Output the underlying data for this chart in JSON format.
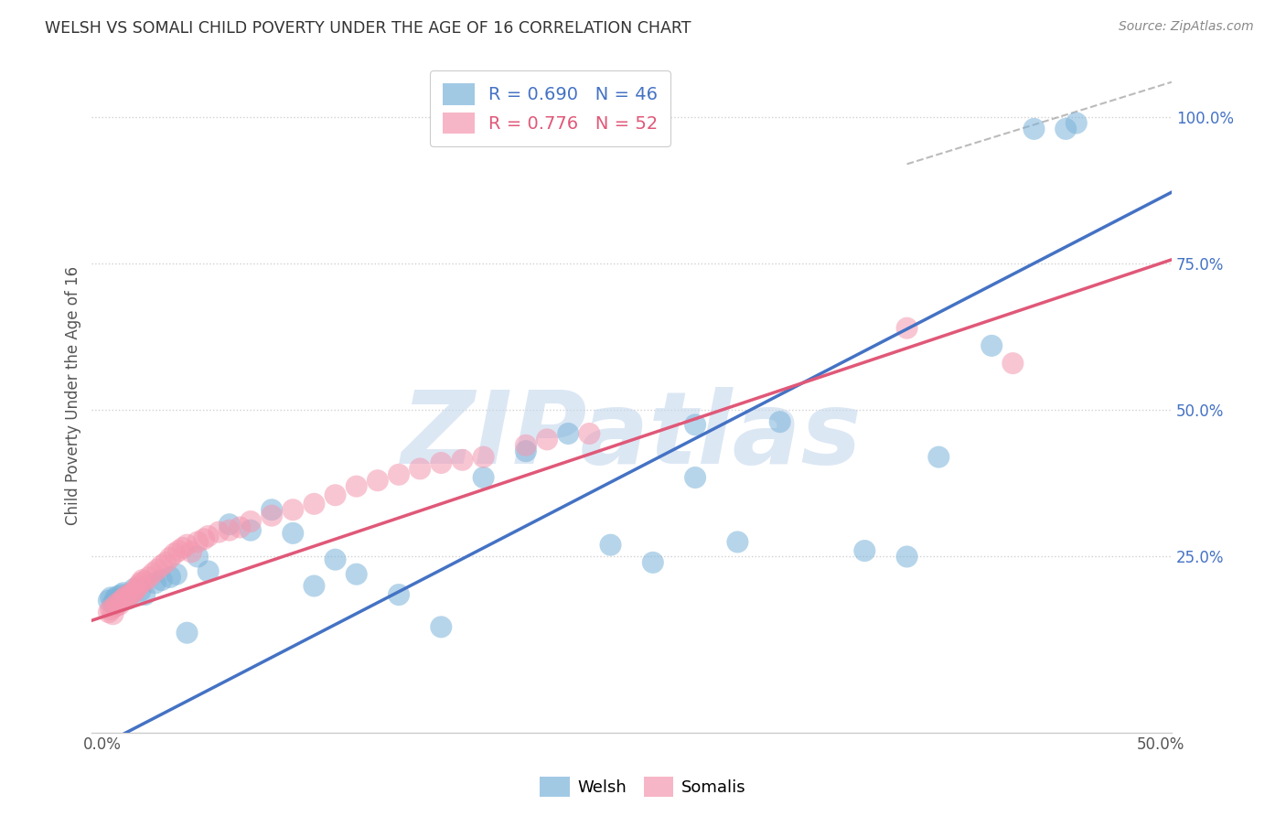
{
  "title": "WELSH VS SOMALI CHILD POVERTY UNDER THE AGE OF 16 CORRELATION CHART",
  "source": "Source: ZipAtlas.com",
  "ylabel": "Child Poverty Under the Age of 16",
  "xlim": [
    -0.005,
    0.505
  ],
  "ylim": [
    -0.05,
    1.1
  ],
  "xtick_positions": [
    0.0,
    0.1,
    0.2,
    0.3,
    0.4,
    0.5
  ],
  "xticklabels": [
    "0.0%",
    "",
    "",
    "",
    "",
    "50.0%"
  ],
  "ytick_positions": [
    0.25,
    0.5,
    0.75,
    1.0
  ],
  "ytick_labels": [
    "25.0%",
    "50.0%",
    "75.0%",
    "100.0%"
  ],
  "welsh_color": "#7ab3d9",
  "somali_color": "#f498b0",
  "welsh_line_color": "#4472c4",
  "somali_line_color": "#e05878",
  "legend_welsh_label": "R = 0.690   N = 46",
  "legend_somali_label": "R = 0.776   N = 52",
  "watermark": "ZIPatlas",
  "watermark_color": "#c5d8ed",
  "background_color": "#ffffff",
  "welsh_x": [
    0.003,
    0.004,
    0.005,
    0.006,
    0.007,
    0.008,
    0.009,
    0.01,
    0.011,
    0.012,
    0.013,
    0.015,
    0.018,
    0.02,
    0.025,
    0.028,
    0.032,
    0.035,
    0.04,
    0.045,
    0.05,
    0.06,
    0.07,
    0.08,
    0.09,
    0.1,
    0.11,
    0.12,
    0.14,
    0.16,
    0.18,
    0.2,
    0.22,
    0.24,
    0.26,
    0.28,
    0.3,
    0.32,
    0.36,
    0.38,
    0.42,
    0.44,
    0.455,
    0.46,
    0.395,
    0.28
  ],
  "welsh_y": [
    0.175,
    0.18,
    0.17,
    0.178,
    0.182,
    0.172,
    0.185,
    0.188,
    0.183,
    0.178,
    0.185,
    0.195,
    0.192,
    0.185,
    0.205,
    0.21,
    0.215,
    0.22,
    0.12,
    0.25,
    0.225,
    0.305,
    0.295,
    0.33,
    0.29,
    0.2,
    0.245,
    0.22,
    0.185,
    0.13,
    0.385,
    0.43,
    0.46,
    0.27,
    0.24,
    0.385,
    0.275,
    0.48,
    0.26,
    0.25,
    0.61,
    0.98,
    0.98,
    0.99,
    0.42,
    0.475
  ],
  "somali_x": [
    0.003,
    0.004,
    0.005,
    0.006,
    0.007,
    0.008,
    0.009,
    0.01,
    0.011,
    0.012,
    0.013,
    0.014,
    0.015,
    0.016,
    0.017,
    0.018,
    0.019,
    0.02,
    0.022,
    0.024,
    0.026,
    0.028,
    0.03,
    0.032,
    0.034,
    0.036,
    0.038,
    0.04,
    0.042,
    0.045,
    0.048,
    0.05,
    0.055,
    0.06,
    0.065,
    0.07,
    0.08,
    0.09,
    0.1,
    0.11,
    0.12,
    0.13,
    0.14,
    0.15,
    0.16,
    0.17,
    0.18,
    0.2,
    0.21,
    0.23,
    0.38,
    0.43
  ],
  "somali_y": [
    0.155,
    0.16,
    0.152,
    0.165,
    0.17,
    0.168,
    0.175,
    0.178,
    0.182,
    0.18,
    0.185,
    0.188,
    0.19,
    0.195,
    0.2,
    0.205,
    0.21,
    0.208,
    0.215,
    0.222,
    0.228,
    0.235,
    0.24,
    0.248,
    0.255,
    0.26,
    0.265,
    0.27,
    0.258,
    0.275,
    0.28,
    0.285,
    0.292,
    0.295,
    0.3,
    0.31,
    0.32,
    0.33,
    0.34,
    0.355,
    0.37,
    0.38,
    0.39,
    0.4,
    0.41,
    0.415,
    0.42,
    0.44,
    0.45,
    0.46,
    0.64,
    0.58
  ],
  "dashed_line_x": [
    0.38,
    0.505
  ],
  "dashed_line_y": [
    0.92,
    1.06
  ]
}
